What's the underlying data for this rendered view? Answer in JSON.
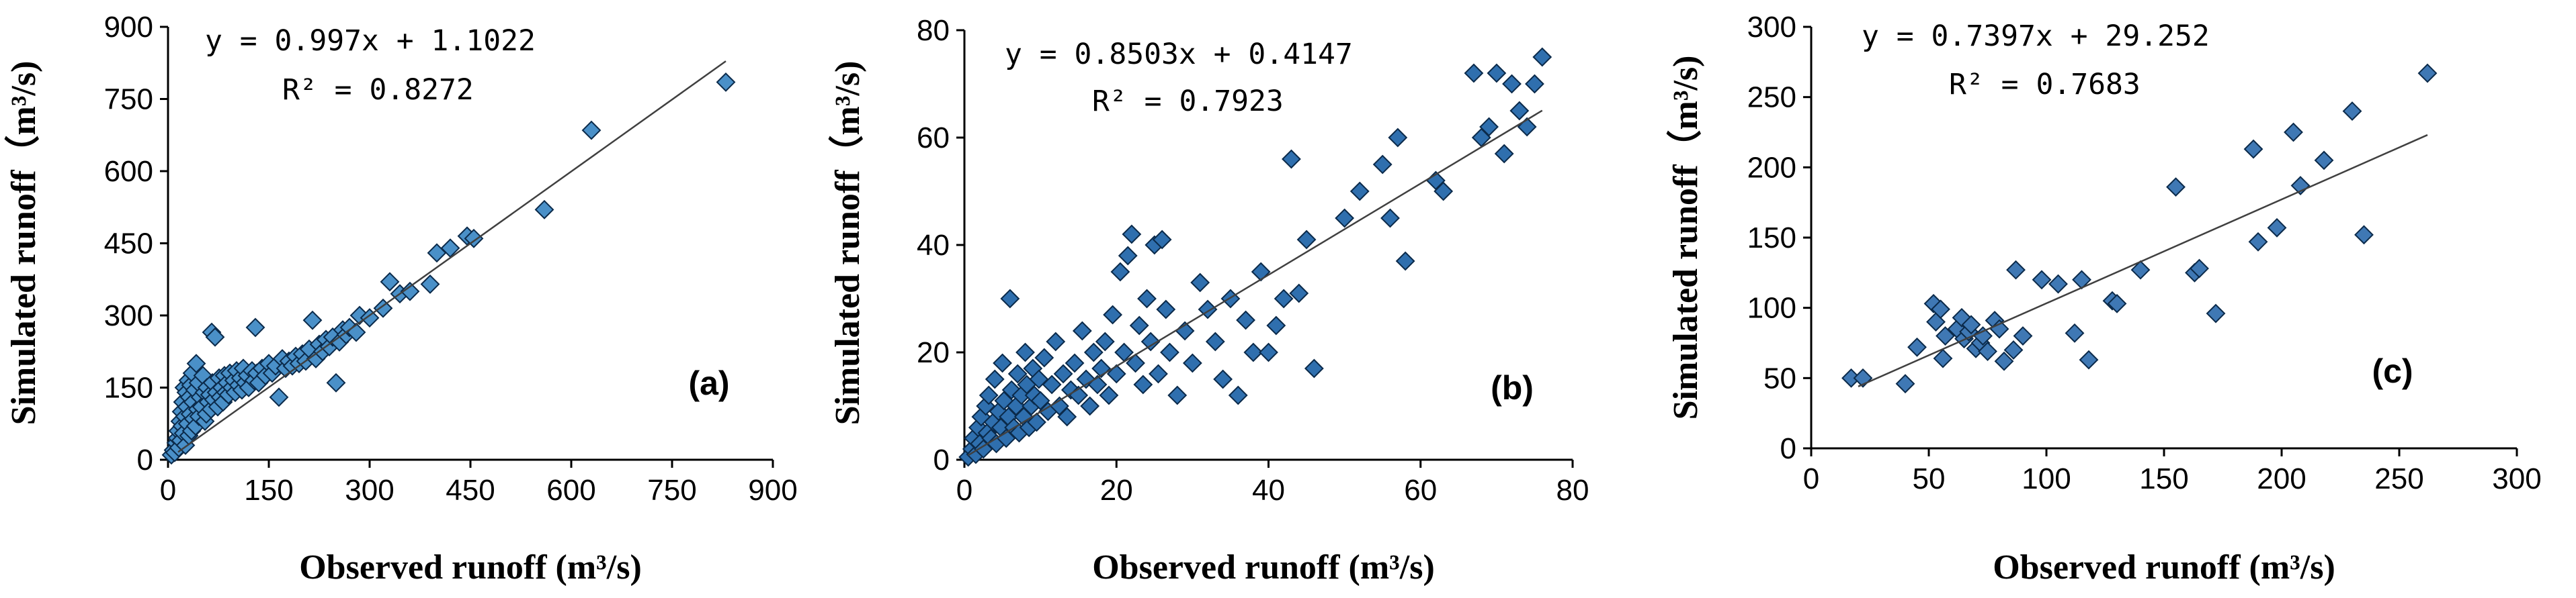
{
  "chart_data": [
    {
      "type": "scatter",
      "panel_label": "(a)",
      "xlabel": "Observed runoff (m³/s)",
      "ylabel": "Simulated runoff（m³/s)",
      "xlim": [
        0,
        900
      ],
      "ylim": [
        0,
        900
      ],
      "xticks": [
        0,
        150,
        300,
        450,
        600,
        750,
        900
      ],
      "yticks": [
        0,
        150,
        300,
        450,
        600,
        750,
        900
      ],
      "grid": false,
      "equation": "y = 0.997x + 1.1022",
      "r2": "R² = 0.8272",
      "trendline": {
        "slope": 0.997,
        "intercept": 1.1022,
        "x_range": [
          15,
          830
        ]
      },
      "marker_color": "#4a90c8",
      "points": [
        [
          5,
          10
        ],
        [
          8,
          20
        ],
        [
          10,
          15
        ],
        [
          12,
          35
        ],
        [
          14,
          45
        ],
        [
          15,
          60
        ],
        [
          16,
          25
        ],
        [
          18,
          80
        ],
        [
          19,
          40
        ],
        [
          20,
          100
        ],
        [
          21,
          70
        ],
        [
          22,
          120
        ],
        [
          23,
          55
        ],
        [
          24,
          150
        ],
        [
          25,
          90
        ],
        [
          26,
          30
        ],
        [
          27,
          140
        ],
        [
          28,
          110
        ],
        [
          29,
          75
        ],
        [
          30,
          165
        ],
        [
          31,
          50
        ],
        [
          32,
          130
        ],
        [
          33,
          95
        ],
        [
          34,
          155
        ],
        [
          35,
          60
        ],
        [
          36,
          180
        ],
        [
          37,
          120
        ],
        [
          38,
          85
        ],
        [
          40,
          145
        ],
        [
          41,
          70
        ],
        [
          42,
          200
        ],
        [
          44,
          105
        ],
        [
          45,
          160
        ],
        [
          46,
          90
        ],
        [
          48,
          130
        ],
        [
          50,
          110
        ],
        [
          52,
          175
        ],
        [
          54,
          140
        ],
        [
          55,
          80
        ],
        [
          57,
          95
        ],
        [
          58,
          150
        ],
        [
          60,
          120
        ],
        [
          62,
          135
        ],
        [
          64,
          105
        ],
        [
          65,
          265
        ],
        [
          66,
          160
        ],
        [
          68,
          125
        ],
        [
          70,
          255
        ],
        [
          72,
          140
        ],
        [
          74,
          110
        ],
        [
          76,
          170
        ],
        [
          78,
          130
        ],
        [
          80,
          150
        ],
        [
          82,
          120
        ],
        [
          84,
          175
        ],
        [
          86,
          140
        ],
        [
          88,
          160
        ],
        [
          90,
          135
        ],
        [
          92,
          180
        ],
        [
          95,
          150
        ],
        [
          98,
          165
        ],
        [
          100,
          140
        ],
        [
          102,
          185
        ],
        [
          105,
          155
        ],
        [
          108,
          170
        ],
        [
          110,
          145
        ],
        [
          112,
          190
        ],
        [
          115,
          160
        ],
        [
          118,
          175
        ],
        [
          120,
          150
        ],
        [
          125,
          185
        ],
        [
          128,
          165
        ],
        [
          130,
          275
        ],
        [
          132,
          180
        ],
        [
          135,
          160
        ],
        [
          140,
          190
        ],
        [
          145,
          175
        ],
        [
          150,
          200
        ],
        [
          155,
          180
        ],
        [
          160,
          195
        ],
        [
          165,
          130
        ],
        [
          170,
          210
        ],
        [
          175,
          190
        ],
        [
          180,
          205
        ],
        [
          185,
          195
        ],
        [
          190,
          215
        ],
        [
          195,
          200
        ],
        [
          200,
          220
        ],
        [
          205,
          205
        ],
        [
          210,
          230
        ],
        [
          215,
          290
        ],
        [
          220,
          210
        ],
        [
          225,
          240
        ],
        [
          230,
          225
        ],
        [
          235,
          250
        ],
        [
          240,
          235
        ],
        [
          245,
          255
        ],
        [
          250,
          160
        ],
        [
          255,
          245
        ],
        [
          260,
          270
        ],
        [
          265,
          260
        ],
        [
          270,
          275
        ],
        [
          280,
          265
        ],
        [
          285,
          300
        ],
        [
          300,
          295
        ],
        [
          320,
          315
        ],
        [
          330,
          370
        ],
        [
          345,
          345
        ],
        [
          360,
          350
        ],
        [
          390,
          365
        ],
        [
          400,
          430
        ],
        [
          420,
          440
        ],
        [
          445,
          465
        ],
        [
          455,
          460
        ],
        [
          560,
          520
        ],
        [
          630,
          685
        ],
        [
          830,
          785
        ]
      ]
    },
    {
      "type": "scatter",
      "panel_label": "(b)",
      "xlabel": "Observed runoff (m³/s)",
      "ylabel": "Simulated runoff（m³/s)",
      "xlim": [
        0,
        80
      ],
      "ylim": [
        0,
        80
      ],
      "xticks": [
        0,
        20,
        40,
        60,
        80
      ],
      "yticks": [
        0,
        20,
        40,
        60,
        80
      ],
      "grid": false,
      "equation": "y = 0.8503x + 0.4147",
      "r2": "R² = 0.7923",
      "trendline": {
        "slope": 0.8503,
        "intercept": 0.4147,
        "x_range": [
          0.5,
          76
        ]
      },
      "marker_color": "#2f6fae",
      "points": [
        [
          0.5,
          0.5
        ],
        [
          1,
          2
        ],
        [
          1.2,
          4
        ],
        [
          1.5,
          1
        ],
        [
          1.8,
          6
        ],
        [
          2,
          3
        ],
        [
          2.2,
          8
        ],
        [
          2.5,
          2
        ],
        [
          2.8,
          10
        ],
        [
          3,
          5
        ],
        [
          3.2,
          12
        ],
        [
          3.5,
          4
        ],
        [
          3.8,
          7
        ],
        [
          4,
          15
        ],
        [
          4.2,
          3
        ],
        [
          4.5,
          9
        ],
        [
          4.8,
          6
        ],
        [
          5,
          18
        ],
        [
          5.2,
          11
        ],
        [
          5.5,
          4
        ],
        [
          5.8,
          8
        ],
        [
          6,
          30
        ],
        [
          6.2,
          13
        ],
        [
          6.5,
          6
        ],
        [
          6.8,
          10
        ],
        [
          7,
          16
        ],
        [
          7.2,
          5
        ],
        [
          7.5,
          12
        ],
        [
          7.8,
          8
        ],
        [
          8,
          20
        ],
        [
          8.2,
          14
        ],
        [
          8.5,
          6
        ],
        [
          8.8,
          10
        ],
        [
          9,
          17
        ],
        [
          9.2,
          12
        ],
        [
          9.5,
          7
        ],
        [
          9.8,
          15
        ],
        [
          10,
          11
        ],
        [
          10.5,
          19
        ],
        [
          11,
          9
        ],
        [
          11.5,
          14
        ],
        [
          12,
          22
        ],
        [
          12.5,
          10
        ],
        [
          13,
          16
        ],
        [
          13.5,
          8
        ],
        [
          14,
          13
        ],
        [
          14.5,
          18
        ],
        [
          15,
          12
        ],
        [
          15.5,
          24
        ],
        [
          16,
          15
        ],
        [
          16.5,
          10
        ],
        [
          17,
          20
        ],
        [
          17.5,
          14
        ],
        [
          18,
          17
        ],
        [
          18.5,
          22
        ],
        [
          19,
          12
        ],
        [
          19.5,
          27
        ],
        [
          20,
          16
        ],
        [
          20.5,
          35
        ],
        [
          21,
          20
        ],
        [
          21.5,
          38
        ],
        [
          22,
          42
        ],
        [
          22.5,
          18
        ],
        [
          23,
          25
        ],
        [
          23.5,
          14
        ],
        [
          24,
          30
        ],
        [
          24.5,
          22
        ],
        [
          25,
          40
        ],
        [
          25.5,
          16
        ],
        [
          26,
          41
        ],
        [
          26.5,
          28
        ],
        [
          27,
          20
        ],
        [
          28,
          12
        ],
        [
          29,
          24
        ],
        [
          30,
          18
        ],
        [
          31,
          33
        ],
        [
          32,
          28
        ],
        [
          33,
          22
        ],
        [
          34,
          15
        ],
        [
          35,
          30
        ],
        [
          36,
          12
        ],
        [
          37,
          26
        ],
        [
          38,
          20
        ],
        [
          39,
          35
        ],
        [
          40,
          20
        ],
        [
          41,
          25
        ],
        [
          42,
          30
        ],
        [
          43,
          56
        ],
        [
          44,
          31
        ],
        [
          45,
          41
        ],
        [
          46,
          17
        ],
        [
          50,
          45
        ],
        [
          52,
          50
        ],
        [
          55,
          55
        ],
        [
          56,
          45
        ],
        [
          57,
          60
        ],
        [
          58,
          37
        ],
        [
          62,
          52
        ],
        [
          63,
          50
        ],
        [
          67,
          72
        ],
        [
          68,
          60
        ],
        [
          69,
          62
        ],
        [
          70,
          72
        ],
        [
          71,
          57
        ],
        [
          72,
          70
        ],
        [
          73,
          65
        ],
        [
          74,
          62
        ],
        [
          75,
          70
        ],
        [
          76,
          75
        ]
      ]
    },
    {
      "type": "scatter",
      "panel_label": "(c)",
      "xlabel": "Observed runoff (m³/s)",
      "ylabel": "Simulated runoff（m³/s)",
      "xlim": [
        0,
        300
      ],
      "ylim": [
        0,
        300
      ],
      "xticks": [
        0,
        50,
        100,
        150,
        200,
        250,
        300
      ],
      "yticks": [
        0,
        50,
        100,
        150,
        200,
        250,
        300
      ],
      "grid": false,
      "equation": "y = 0.7397x + 29.252",
      "r2": "R² = 0.7683",
      "trendline": {
        "slope": 0.7397,
        "intercept": 29.252,
        "x_range": [
          20,
          262
        ]
      },
      "marker_color": "#3f78b4",
      "points": [
        [
          17,
          50
        ],
        [
          22,
          50
        ],
        [
          40,
          46
        ],
        [
          45,
          72
        ],
        [
          52,
          103
        ],
        [
          53,
          90
        ],
        [
          55,
          99
        ],
        [
          56,
          64
        ],
        [
          57,
          80
        ],
        [
          62,
          85
        ],
        [
          64,
          93
        ],
        [
          65,
          78
        ],
        [
          67,
          83
        ],
        [
          68,
          88
        ],
        [
          70,
          71
        ],
        [
          72,
          75
        ],
        [
          73,
          80
        ],
        [
          75,
          69
        ],
        [
          78,
          91
        ],
        [
          80,
          85
        ],
        [
          82,
          62
        ],
        [
          86,
          70
        ],
        [
          87,
          127
        ],
        [
          90,
          80
        ],
        [
          98,
          120
        ],
        [
          105,
          117
        ],
        [
          112,
          82
        ],
        [
          115,
          120
        ],
        [
          118,
          63
        ],
        [
          128,
          105
        ],
        [
          130,
          103
        ],
        [
          140,
          127
        ],
        [
          155,
          186
        ],
        [
          163,
          125
        ],
        [
          165,
          128
        ],
        [
          172,
          96
        ],
        [
          188,
          213
        ],
        [
          190,
          147
        ],
        [
          198,
          157
        ],
        [
          205,
          225
        ],
        [
          208,
          187
        ],
        [
          218,
          205
        ],
        [
          230,
          240
        ],
        [
          235,
          152
        ],
        [
          262,
          267
        ]
      ]
    }
  ]
}
